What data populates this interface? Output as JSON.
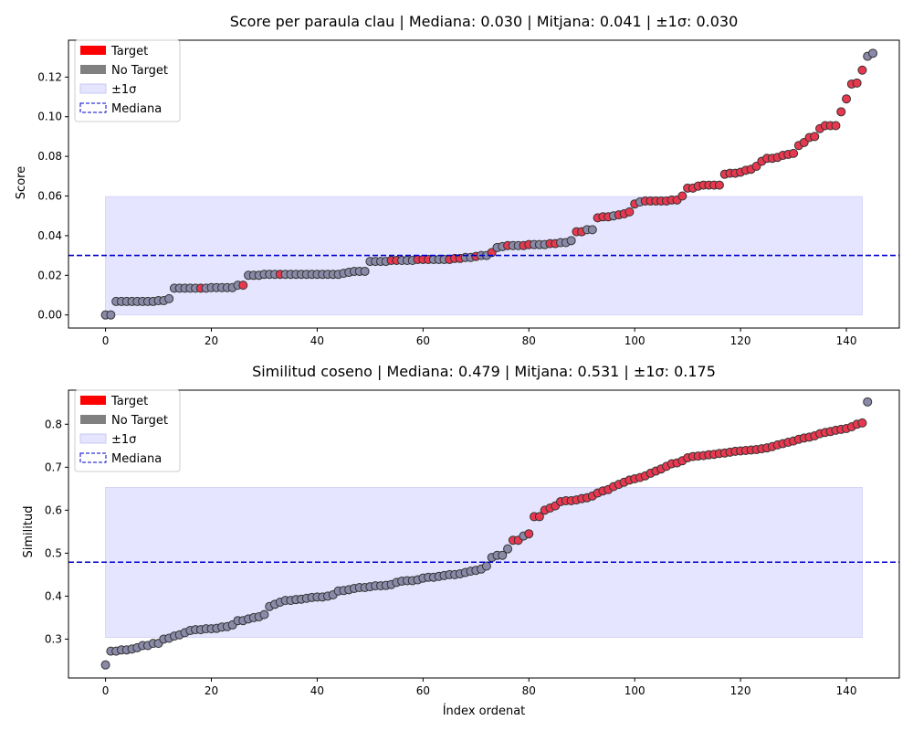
{
  "chart_data": [
    {
      "type": "scatter",
      "title": "Score per paraula clau | Mediana: 0.030 | Mitjana: 0.041 | ±1σ: 0.030",
      "xlabel": "",
      "ylabel": "Score",
      "xlim": [
        -7,
        150
      ],
      "ylim": [
        -0.0066,
        0.1386
      ],
      "xticks": [
        0,
        20,
        40,
        60,
        80,
        100,
        120,
        140
      ],
      "yticks": [
        0.0,
        0.02,
        0.04,
        0.06,
        0.08,
        0.1,
        0.12
      ],
      "ytick_labels": [
        "0.00",
        "0.02",
        "0.04",
        "0.06",
        "0.08",
        "0.10",
        "0.12"
      ],
      "median": 0.03,
      "band": [
        0.0,
        0.0597
      ],
      "band_x": [
        0,
        143
      ],
      "legend": [
        {
          "label": "Target",
          "color": "#ff0000",
          "kind": "patch"
        },
        {
          "label": "No Target",
          "color": "#808080",
          "kind": "patch"
        },
        {
          "label": "±1σ",
          "color": "#e5e5ff",
          "kind": "patch"
        },
        {
          "label": "Mediana",
          "color": "#0000cc",
          "kind": "dashed"
        }
      ],
      "legend_position": "upper left",
      "colors": {
        "target": "#e8384f",
        "no_target": "#8a8aa8",
        "edge": "#333333",
        "band": "#e5e5ff",
        "median": "#0000cc"
      },
      "y": [
        0,
        0,
        0.0068,
        0.0068,
        0.0068,
        0.0068,
        0.0068,
        0.0068,
        0.0068,
        0.0068,
        0.0072,
        0.0072,
        0.0082,
        0.0135,
        0.0135,
        0.0135,
        0.0135,
        0.0135,
        0.0135,
        0.0135,
        0.0138,
        0.0138,
        0.0138,
        0.0138,
        0.0138,
        0.015,
        0.015,
        0.02,
        0.02,
        0.02,
        0.0205,
        0.0205,
        0.0205,
        0.0205,
        0.0205,
        0.0205,
        0.0205,
        0.0205,
        0.0205,
        0.0205,
        0.0205,
        0.0205,
        0.0205,
        0.0205,
        0.0205,
        0.021,
        0.0215,
        0.022,
        0.022,
        0.022,
        0.027,
        0.027,
        0.027,
        0.027,
        0.0275,
        0.0275,
        0.0275,
        0.0275,
        0.0275,
        0.028,
        0.028,
        0.028,
        0.028,
        0.028,
        0.028,
        0.028,
        0.0285,
        0.0285,
        0.029,
        0.029,
        0.0295,
        0.03,
        0.03,
        0.0315,
        0.034,
        0.0345,
        0.035,
        0.035,
        0.035,
        0.035,
        0.0355,
        0.0355,
        0.0355,
        0.0355,
        0.036,
        0.036,
        0.0365,
        0.0365,
        0.0375,
        0.042,
        0.042,
        0.043,
        0.043,
        0.049,
        0.0495,
        0.0495,
        0.05,
        0.0505,
        0.051,
        0.052,
        0.056,
        0.057,
        0.0575,
        0.0575,
        0.0575,
        0.0575,
        0.0575,
        0.058,
        0.058,
        0.06,
        0.064,
        0.064,
        0.065,
        0.0655,
        0.0655,
        0.0655,
        0.0655,
        0.071,
        0.0715,
        0.0715,
        0.072,
        0.073,
        0.0735,
        0.075,
        0.0775,
        0.079,
        0.079,
        0.0795,
        0.0805,
        0.081,
        0.0815,
        0.0855,
        0.087,
        0.0895,
        0.09,
        0.094,
        0.0955,
        0.0955,
        0.0955,
        0.1025,
        0.109,
        0.1165,
        0.117,
        0.1235,
        0.1305,
        0.132
      ],
      "target": [
        0,
        0,
        0,
        0,
        0,
        0,
        0,
        0,
        0,
        0,
        0,
        0,
        0,
        0,
        0,
        0,
        0,
        0,
        1,
        0,
        0,
        0,
        0,
        0,
        0,
        0,
        1,
        0,
        0,
        0,
        0,
        0,
        0,
        1,
        0,
        0,
        0,
        0,
        0,
        0,
        0,
        0,
        0,
        0,
        0,
        0,
        0,
        0,
        0,
        0,
        0,
        0,
        0,
        0,
        1,
        1,
        0,
        0,
        0,
        1,
        1,
        1,
        0,
        0,
        0,
        1,
        1,
        1,
        0,
        0,
        1,
        0,
        0,
        1,
        0,
        0,
        1,
        0,
        0,
        1,
        1,
        0,
        0,
        0,
        1,
        1,
        0,
        0,
        0,
        1,
        1,
        0,
        0,
        1,
        1,
        1,
        0,
        1,
        1,
        1,
        1,
        0,
        1,
        1,
        1,
        1,
        1,
        1,
        1,
        1,
        1,
        1,
        1,
        1,
        1,
        1,
        1,
        1,
        1,
        1,
        1,
        1,
        1,
        1,
        1,
        1,
        1,
        1,
        1,
        1,
        1,
        1,
        1,
        1,
        1,
        1,
        1,
        1,
        1,
        1,
        1,
        1,
        1,
        1
      ]
    },
    {
      "type": "scatter",
      "title": "Similitud coseno | Mediana: 0.479 | Mitjana: 0.531 | ±1σ: 0.175",
      "xlabel": "Índex ordenat",
      "ylabel": "Similitud",
      "xlim": [
        -7,
        150
      ],
      "ylim": [
        0.2095,
        0.8793
      ],
      "xticks": [
        0,
        20,
        40,
        60,
        80,
        100,
        120,
        140
      ],
      "yticks": [
        0.3,
        0.4,
        0.5,
        0.6,
        0.7,
        0.8
      ],
      "ytick_labels": [
        "0.3",
        "0.4",
        "0.5",
        "0.6",
        "0.7",
        "0.8"
      ],
      "median": 0.479,
      "band": [
        0.304,
        0.653
      ],
      "band_x": [
        0,
        143
      ],
      "legend": [
        {
          "label": "Target",
          "color": "#ff0000",
          "kind": "patch"
        },
        {
          "label": "No Target",
          "color": "#808080",
          "kind": "patch"
        },
        {
          "label": "±1σ",
          "color": "#e5e5ff",
          "kind": "patch"
        },
        {
          "label": "Mediana",
          "color": "#0000cc",
          "kind": "dashed"
        }
      ],
      "legend_position": "upper left",
      "colors": {
        "target": "#e8384f",
        "no_target": "#8a8aa8",
        "edge": "#333333",
        "band": "#e5e5ff",
        "median": "#0000cc"
      },
      "y": [
        0.24,
        0.272,
        0.272,
        0.275,
        0.275,
        0.277,
        0.28,
        0.285,
        0.285,
        0.29,
        0.29,
        0.3,
        0.302,
        0.307,
        0.31,
        0.315,
        0.32,
        0.322,
        0.322,
        0.324,
        0.324,
        0.325,
        0.328,
        0.329,
        0.333,
        0.343,
        0.343,
        0.347,
        0.35,
        0.352,
        0.357,
        0.376,
        0.381,
        0.386,
        0.39,
        0.39,
        0.392,
        0.393,
        0.395,
        0.397,
        0.398,
        0.398,
        0.4,
        0.403,
        0.412,
        0.413,
        0.415,
        0.418,
        0.42,
        0.42,
        0.422,
        0.424,
        0.424,
        0.425,
        0.427,
        0.432,
        0.435,
        0.436,
        0.436,
        0.438,
        0.442,
        0.444,
        0.444,
        0.446,
        0.448,
        0.45,
        0.45,
        0.452,
        0.455,
        0.458,
        0.46,
        0.463,
        0.47,
        0.49,
        0.495,
        0.495,
        0.51,
        0.53,
        0.53,
        0.54,
        0.545,
        0.585,
        0.585,
        0.6,
        0.605,
        0.61,
        0.62,
        0.622,
        0.622,
        0.624,
        0.627,
        0.629,
        0.633,
        0.64,
        0.645,
        0.648,
        0.655,
        0.66,
        0.665,
        0.67,
        0.673,
        0.676,
        0.68,
        0.686,
        0.691,
        0.696,
        0.702,
        0.708,
        0.71,
        0.715,
        0.722,
        0.725,
        0.726,
        0.727,
        0.729,
        0.73,
        0.732,
        0.733,
        0.735,
        0.737,
        0.738,
        0.739,
        0.74,
        0.741,
        0.743,
        0.745,
        0.748,
        0.752,
        0.755,
        0.758,
        0.761,
        0.765,
        0.768,
        0.77,
        0.773,
        0.778,
        0.781,
        0.783,
        0.786,
        0.788,
        0.79,
        0.794,
        0.8,
        0.803,
        0.852
      ],
      "target": [
        0,
        0,
        0,
        0,
        0,
        0,
        0,
        0,
        0,
        0,
        0,
        0,
        0,
        0,
        0,
        0,
        0,
        0,
        0,
        0,
        0,
        0,
        0,
        0,
        0,
        0,
        0,
        0,
        0,
        0,
        0,
        0,
        0,
        0,
        0,
        0,
        0,
        0,
        0,
        0,
        0,
        0,
        0,
        0,
        0,
        0,
        0,
        0,
        0,
        0,
        0,
        0,
        0,
        0,
        0,
        0,
        0,
        0,
        0,
        0,
        0,
        0,
        0,
        0,
        0,
        0,
        0,
        0,
        0,
        0,
        0,
        0,
        0,
        0,
        0,
        0,
        0,
        1,
        1,
        0,
        1,
        1,
        1,
        1,
        1,
        1,
        1,
        1,
        1,
        1,
        1,
        1,
        1,
        1,
        1,
        1,
        1,
        1,
        1,
        1,
        1,
        1,
        1,
        1,
        1,
        1,
        1,
        1,
        1,
        1,
        1,
        1,
        1,
        1,
        1,
        1,
        1,
        1,
        1,
        1,
        1,
        1,
        1,
        1,
        1,
        1,
        1,
        1,
        1,
        1,
        1,
        1,
        1,
        1,
        1,
        1,
        1,
        1,
        1,
        1,
        1,
        1,
        1,
        1
      ]
    }
  ]
}
